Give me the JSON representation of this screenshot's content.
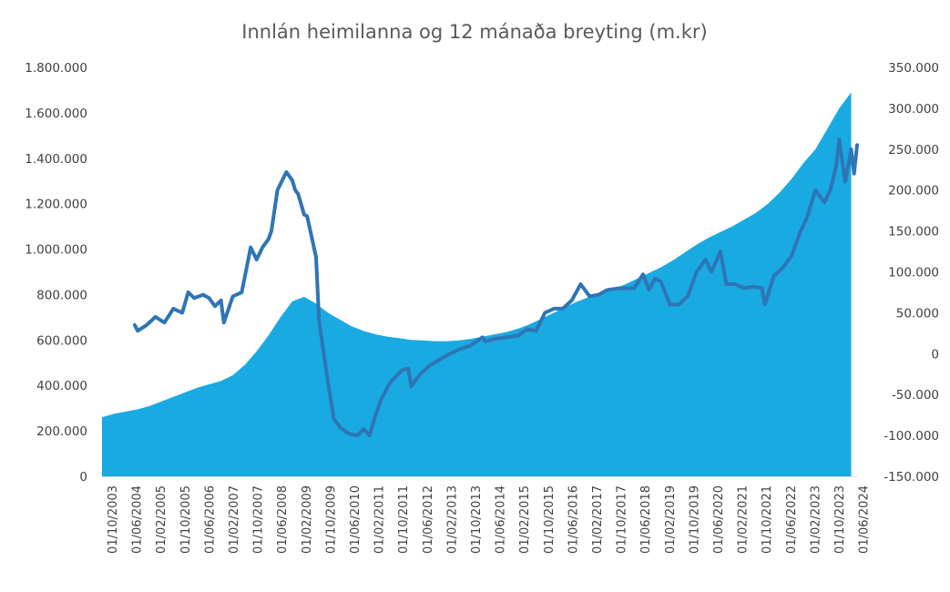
{
  "chart_data": {
    "type": "area",
    "title": "Innlán heimilanna og 12 mánaða breyting (m.kr)",
    "xlabel": "",
    "ylabel": "",
    "grid": false,
    "legend": "none",
    "x_tick_labels": [
      "01/10/2003",
      "01/06/2004",
      "01/02/2005",
      "01/10/2005",
      "01/06/2006",
      "01/02/2007",
      "01/10/2007",
      "01/06/2008",
      "01/02/2009",
      "01/10/2009",
      "01/06/2010",
      "01/02/2011",
      "01/10/2011",
      "01/06/2012",
      "01/02/2013",
      "01/10/2013",
      "01/06/2014",
      "01/02/2015",
      "01/10/2015",
      "01/06/2016",
      "01/02/2017",
      "01/10/2017",
      "01/06/2018",
      "01/02/2019",
      "01/10/2019",
      "01/06/2020",
      "01/02/2021",
      "01/10/2021",
      "01/06/2022",
      "01/02/2023",
      "01/10/2023",
      "01/06/2024"
    ],
    "y_left": {
      "ylim": [
        0,
        1800000
      ],
      "ticks": [
        0,
        200000,
        400000,
        600000,
        800000,
        1000000,
        1200000,
        1400000,
        1600000,
        1800000
      ],
      "tick_labels": [
        "0",
        "200.000",
        "400.000",
        "600.000",
        "800.000",
        "1.000.000",
        "1.200.000",
        "1.400.000",
        "1.600.000",
        "1.800.000"
      ]
    },
    "y_right": {
      "ylim": [
        -150000,
        350000
      ],
      "ticks": [
        -150000,
        -100000,
        -50000,
        0,
        50000,
        100000,
        150000,
        200000,
        250000,
        300000,
        350000
      ],
      "tick_labels": [
        "-150.000",
        "-100.000",
        "-50.000",
        "0",
        "50.000",
        "100.000",
        "150.000",
        "200.000",
        "250.000",
        "300.000",
        "350.000"
      ]
    },
    "series": [
      {
        "type": "area",
        "axis": "left",
        "color": "#1aaae2",
        "points": [
          [
            "2003-10",
            260000
          ],
          [
            "2004-02",
            275000
          ],
          [
            "2004-06",
            285000
          ],
          [
            "2004-10",
            295000
          ],
          [
            "2005-02",
            310000
          ],
          [
            "2005-06",
            330000
          ],
          [
            "2005-10",
            350000
          ],
          [
            "2006-02",
            370000
          ],
          [
            "2006-06",
            390000
          ],
          [
            "2006-10",
            405000
          ],
          [
            "2007-02",
            420000
          ],
          [
            "2007-06",
            445000
          ],
          [
            "2007-10",
            490000
          ],
          [
            "2008-02",
            550000
          ],
          [
            "2008-06",
            620000
          ],
          [
            "2008-10",
            700000
          ],
          [
            "2009-02",
            770000
          ],
          [
            "2009-06",
            790000
          ],
          [
            "2009-10",
            760000
          ],
          [
            "2010-02",
            720000
          ],
          [
            "2010-06",
            690000
          ],
          [
            "2010-10",
            660000
          ],
          [
            "2011-02",
            640000
          ],
          [
            "2011-06",
            625000
          ],
          [
            "2011-10",
            615000
          ],
          [
            "2012-02",
            608000
          ],
          [
            "2012-06",
            600000
          ],
          [
            "2012-10",
            598000
          ],
          [
            "2013-02",
            595000
          ],
          [
            "2013-06",
            595000
          ],
          [
            "2013-10",
            598000
          ],
          [
            "2014-02",
            605000
          ],
          [
            "2014-06",
            615000
          ],
          [
            "2014-10",
            625000
          ],
          [
            "2015-02",
            635000
          ],
          [
            "2015-06",
            650000
          ],
          [
            "2015-10",
            670000
          ],
          [
            "2016-02",
            695000
          ],
          [
            "2016-06",
            720000
          ],
          [
            "2016-10",
            745000
          ],
          [
            "2017-02",
            770000
          ],
          [
            "2017-06",
            790000
          ],
          [
            "2017-10",
            805000
          ],
          [
            "2018-02",
            825000
          ],
          [
            "2018-06",
            845000
          ],
          [
            "2018-10",
            870000
          ],
          [
            "2019-02",
            895000
          ],
          [
            "2019-06",
            920000
          ],
          [
            "2019-10",
            950000
          ],
          [
            "2020-02",
            985000
          ],
          [
            "2020-06",
            1020000
          ],
          [
            "2020-10",
            1050000
          ],
          [
            "2021-02",
            1075000
          ],
          [
            "2021-06",
            1100000
          ],
          [
            "2021-10",
            1130000
          ],
          [
            "2022-02",
            1160000
          ],
          [
            "2022-06",
            1200000
          ],
          [
            "2022-10",
            1250000
          ],
          [
            "2023-02",
            1310000
          ],
          [
            "2023-06",
            1380000
          ],
          [
            "2023-10",
            1440000
          ],
          [
            "2024-02",
            1530000
          ],
          [
            "2024-06",
            1620000
          ],
          [
            "2024-10",
            1690000
          ]
        ]
      },
      {
        "type": "line",
        "axis": "right",
        "color": "#2e75b6",
        "points": [
          [
            "2004-09",
            35000
          ],
          [
            "2004-10",
            28000
          ],
          [
            "2005-01",
            35000
          ],
          [
            "2005-04",
            45000
          ],
          [
            "2005-07",
            38000
          ],
          [
            "2005-10",
            55000
          ],
          [
            "2006-01",
            50000
          ],
          [
            "2006-03",
            75000
          ],
          [
            "2006-05",
            68000
          ],
          [
            "2006-08",
            72000
          ],
          [
            "2006-10",
            68000
          ],
          [
            "2006-12",
            58000
          ],
          [
            "2007-02",
            65000
          ],
          [
            "2007-03",
            38000
          ],
          [
            "2007-06",
            70000
          ],
          [
            "2007-09",
            75000
          ],
          [
            "2007-12",
            130000
          ],
          [
            "2008-02",
            115000
          ],
          [
            "2008-04",
            130000
          ],
          [
            "2008-06",
            140000
          ],
          [
            "2008-07",
            150000
          ],
          [
            "2008-09",
            200000
          ],
          [
            "2008-12",
            222000
          ],
          [
            "2009-02",
            212000
          ],
          [
            "2009-03",
            200000
          ],
          [
            "2009-04",
            195000
          ],
          [
            "2009-06",
            170000
          ],
          [
            "2009-07",
            168000
          ],
          [
            "2009-10",
            118000
          ],
          [
            "2009-11",
            40000
          ],
          [
            "2010-02",
            -35000
          ],
          [
            "2010-04",
            -80000
          ],
          [
            "2010-06",
            -90000
          ],
          [
            "2010-09",
            -98000
          ],
          [
            "2010-12",
            -100000
          ],
          [
            "2011-02",
            -92000
          ],
          [
            "2011-04",
            -100000
          ],
          [
            "2011-06",
            -75000
          ],
          [
            "2011-08",
            -55000
          ],
          [
            "2011-11",
            -35000
          ],
          [
            "2012-03",
            -20000
          ],
          [
            "2012-05",
            -18000
          ],
          [
            "2012-06",
            -40000
          ],
          [
            "2012-09",
            -25000
          ],
          [
            "2012-12",
            -15000
          ],
          [
            "2013-06",
            -2000
          ],
          [
            "2013-10",
            5000
          ],
          [
            "2014-02",
            10000
          ],
          [
            "2014-06",
            20000
          ],
          [
            "2014-07",
            15000
          ],
          [
            "2014-10",
            18000
          ],
          [
            "2015-02",
            20000
          ],
          [
            "2015-06",
            22000
          ],
          [
            "2015-09",
            30000
          ],
          [
            "2015-12",
            28000
          ],
          [
            "2016-03",
            50000
          ],
          [
            "2016-06",
            55000
          ],
          [
            "2016-09",
            55000
          ],
          [
            "2016-12",
            65000
          ],
          [
            "2017-03",
            85000
          ],
          [
            "2017-06",
            70000
          ],
          [
            "2017-09",
            72000
          ],
          [
            "2017-12",
            78000
          ],
          [
            "2018-04",
            80000
          ],
          [
            "2018-09",
            80000
          ],
          [
            "2018-12",
            97000
          ],
          [
            "2019-02",
            78000
          ],
          [
            "2019-04",
            92000
          ],
          [
            "2019-06",
            88000
          ],
          [
            "2019-09",
            60000
          ],
          [
            "2019-12",
            60000
          ],
          [
            "2020-03",
            70000
          ],
          [
            "2020-06",
            100000
          ],
          [
            "2020-09",
            115000
          ],
          [
            "2020-11",
            100000
          ],
          [
            "2021-02",
            125000
          ],
          [
            "2021-04",
            85000
          ],
          [
            "2021-07",
            85000
          ],
          [
            "2021-10",
            80000
          ],
          [
            "2022-01",
            82000
          ],
          [
            "2022-04",
            80000
          ],
          [
            "2022-05",
            60000
          ],
          [
            "2022-08",
            95000
          ],
          [
            "2022-11",
            105000
          ],
          [
            "2023-02",
            120000
          ],
          [
            "2023-05",
            150000
          ],
          [
            "2023-07",
            165000
          ],
          [
            "2023-10",
            200000
          ],
          [
            "2024-01",
            185000
          ],
          [
            "2024-03",
            200000
          ],
          [
            "2024-05",
            230000
          ],
          [
            "2024-06",
            262000
          ],
          [
            "2024-08",
            210000
          ],
          [
            "2024-10",
            250000
          ],
          [
            "2024-11",
            220000
          ],
          [
            "2025-01",
            255000
          ]
        ]
      }
    ]
  }
}
